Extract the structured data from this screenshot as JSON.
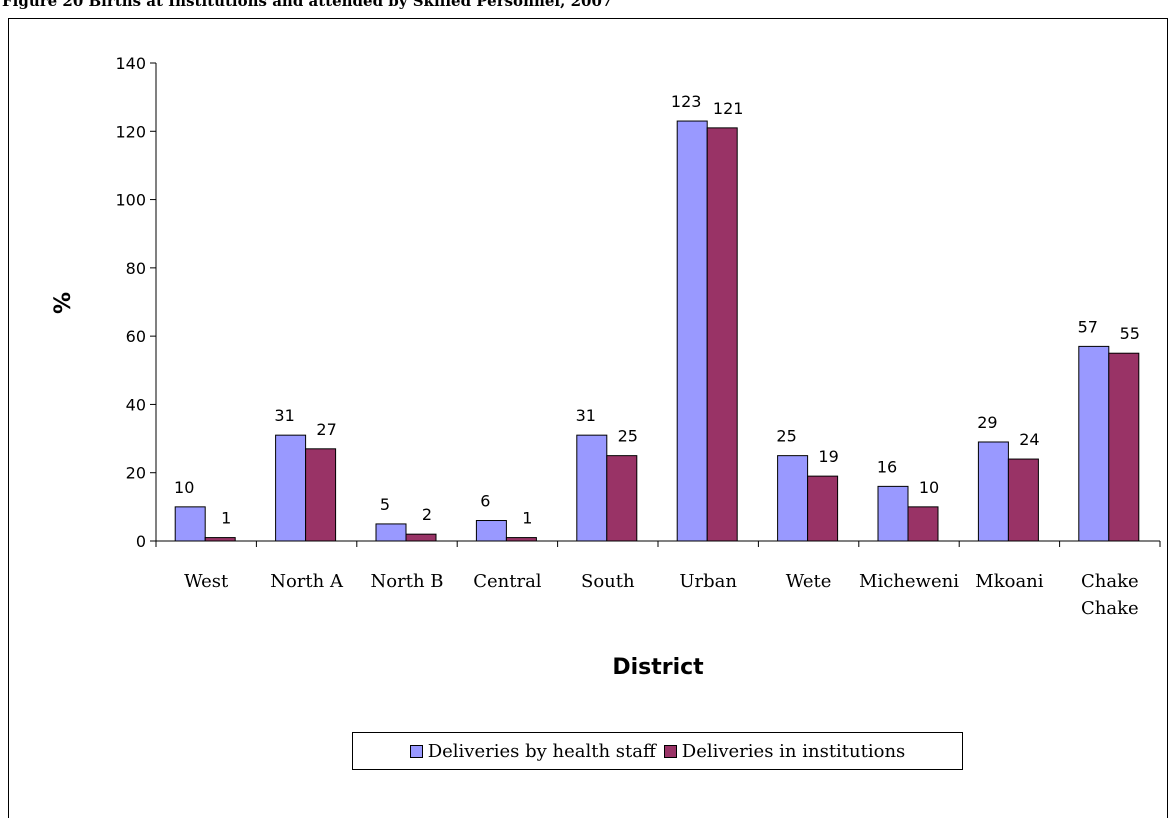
{
  "caption": "Figure 20 Births at Institutions and attended by Skilled Personnel, 2007",
  "colors": {
    "series1": "#9999ff",
    "series2": "#993366",
    "axis": "#000000"
  },
  "chart_data": {
    "type": "bar",
    "title": "",
    "xlabel": "District",
    "ylabel": "%",
    "ylim": [
      0,
      140
    ],
    "yticks": [
      0,
      20,
      40,
      60,
      80,
      100,
      120,
      140
    ],
    "grid": false,
    "legend_position": "bottom",
    "categories": [
      "West",
      "North A",
      "North B",
      "Central",
      "South",
      "Urban",
      "Wete",
      "Micheweni",
      "Mkoani",
      "Chake Chake"
    ],
    "series": [
      {
        "name": "Deliveries by health staff",
        "values": [
          10,
          31,
          5,
          6,
          31,
          123,
          25,
          16,
          29,
          57
        ]
      },
      {
        "name": "Deliveries in institutions",
        "values": [
          1,
          27,
          2,
          1,
          25,
          121,
          19,
          10,
          24,
          55
        ]
      }
    ]
  }
}
